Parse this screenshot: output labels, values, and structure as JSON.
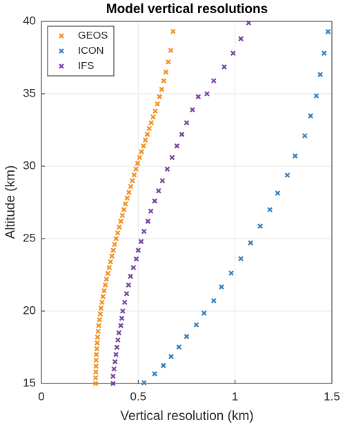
{
  "chart_data": {
    "type": "scatter",
    "title": "Model vertical resolutions",
    "x_label": "Vertical resolution (km)",
    "y_label": "Altitude (km)",
    "xlim": [
      0,
      1.5
    ],
    "ylim": [
      15,
      40
    ],
    "xticks": [
      0,
      0.5,
      1,
      1.5
    ],
    "yticks": [
      15,
      20,
      25,
      30,
      35,
      40
    ],
    "grid": true,
    "legend": "upper-left",
    "series": [
      {
        "name": "GEOS",
        "color": "#f28e1c",
        "x": [
          0.28,
          0.28,
          0.281,
          0.282,
          0.283,
          0.284,
          0.286,
          0.288,
          0.29,
          0.293,
          0.296,
          0.3,
          0.304,
          0.308,
          0.313,
          0.318,
          0.324,
          0.33,
          0.336,
          0.343,
          0.35,
          0.357,
          0.364,
          0.371,
          0.378,
          0.386,
          0.394,
          0.402,
          0.41,
          0.418,
          0.426,
          0.434,
          0.443,
          0.452,
          0.461,
          0.47,
          0.479,
          0.488,
          0.497,
          0.507,
          0.517,
          0.527,
          0.537,
          0.547,
          0.557,
          0.567,
          0.577,
          0.588,
          0.599,
          0.61,
          0.621,
          0.632,
          0.643,
          0.655,
          0.668,
          0.68
        ],
        "values": [
          15.0,
          15.4,
          15.8,
          16.2,
          16.6,
          17.0,
          17.4,
          17.8,
          18.2,
          18.6,
          19.0,
          19.4,
          19.8,
          20.2,
          20.6,
          21.0,
          21.4,
          21.8,
          22.2,
          22.6,
          23.0,
          23.4,
          23.8,
          24.2,
          24.6,
          25.0,
          25.4,
          25.8,
          26.2,
          26.6,
          27.0,
          27.4,
          27.8,
          28.2,
          28.6,
          29.0,
          29.4,
          29.8,
          30.2,
          30.6,
          31.0,
          31.4,
          31.8,
          32.2,
          32.6,
          33.0,
          33.4,
          33.8,
          34.3,
          34.8,
          35.3,
          35.9,
          36.5,
          37.2,
          38.0,
          39.3
        ]
      },
      {
        "name": "ICON",
        "color": "#2e7ebf",
        "x": [
          0.53,
          0.585,
          0.63,
          0.67,
          0.71,
          0.75,
          0.8,
          0.84,
          0.89,
          0.93,
          0.98,
          1.03,
          1.08,
          1.13,
          1.18,
          1.22,
          1.27,
          1.31,
          1.36,
          1.39,
          1.42,
          1.44,
          1.46,
          1.48
        ],
        "values": [
          15.05,
          15.67,
          16.24,
          16.86,
          17.52,
          18.24,
          19.05,
          19.86,
          20.71,
          21.67,
          22.62,
          23.62,
          24.71,
          25.86,
          27.0,
          28.14,
          29.38,
          30.71,
          32.1,
          33.48,
          34.86,
          36.33,
          37.8,
          39.29
        ]
      },
      {
        "name": "IFS",
        "color": "#7540a0",
        "x": [
          0.37,
          0.37,
          0.375,
          0.38,
          0.385,
          0.39,
          0.395,
          0.4,
          0.41,
          0.415,
          0.42,
          0.43,
          0.44,
          0.45,
          0.46,
          0.475,
          0.49,
          0.5,
          0.515,
          0.53,
          0.55,
          0.565,
          0.585,
          0.605,
          0.625,
          0.65,
          0.675,
          0.7,
          0.725,
          0.75,
          0.78,
          0.81,
          0.855,
          0.89,
          0.944,
          0.99,
          1.03,
          1.07
        ],
        "values": [
          15.0,
          15.5,
          16.0,
          16.5,
          17.0,
          17.5,
          18.0,
          18.5,
          19.0,
          19.5,
          20.0,
          20.6,
          21.2,
          21.8,
          22.4,
          23.0,
          23.6,
          24.2,
          24.8,
          25.5,
          26.2,
          26.9,
          27.6,
          28.3,
          29.0,
          29.8,
          30.6,
          31.4,
          32.2,
          33.0,
          33.9,
          34.8,
          35.0,
          35.9,
          36.86,
          37.8,
          38.8,
          39.9
        ]
      }
    ]
  }
}
